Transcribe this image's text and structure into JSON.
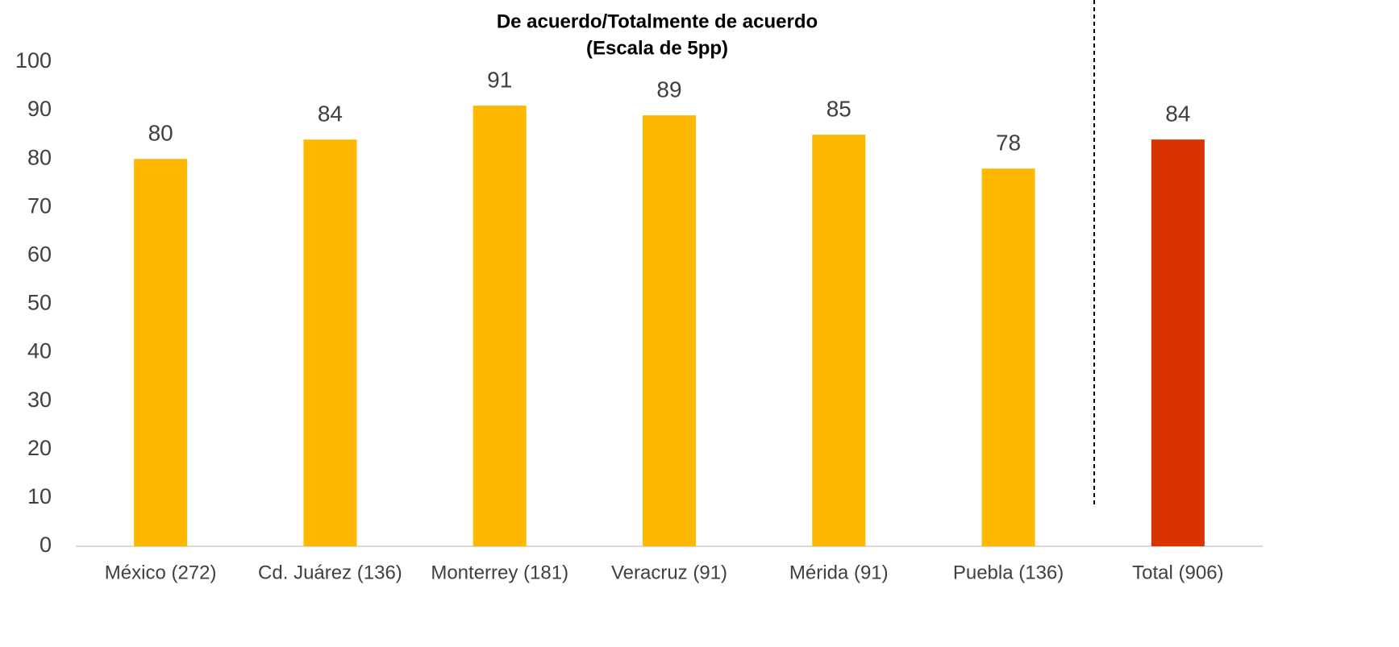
{
  "chart_data": {
    "type": "bar",
    "title": "De acuerdo/Totalmente de acuerdo",
    "subtitle": "(Escala de 5pp)",
    "categories": [
      "México (272)",
      "Cd. Juárez (136)",
      "Monterrey (181)",
      "Veracruz (91)",
      "Mérida (91)",
      "Puebla (136)",
      "Total (906)"
    ],
    "values": [
      80,
      84,
      91,
      89,
      85,
      78,
      84
    ],
    "colors": [
      "#FFB800",
      "#FFB800",
      "#FFB800",
      "#FFB800",
      "#FFB800",
      "#FFB800",
      "#D93300"
    ],
    "ylim": [
      0,
      100
    ],
    "yticks": [
      0,
      10,
      20,
      30,
      40,
      50,
      60,
      70,
      80,
      90,
      100
    ],
    "grid": false
  }
}
